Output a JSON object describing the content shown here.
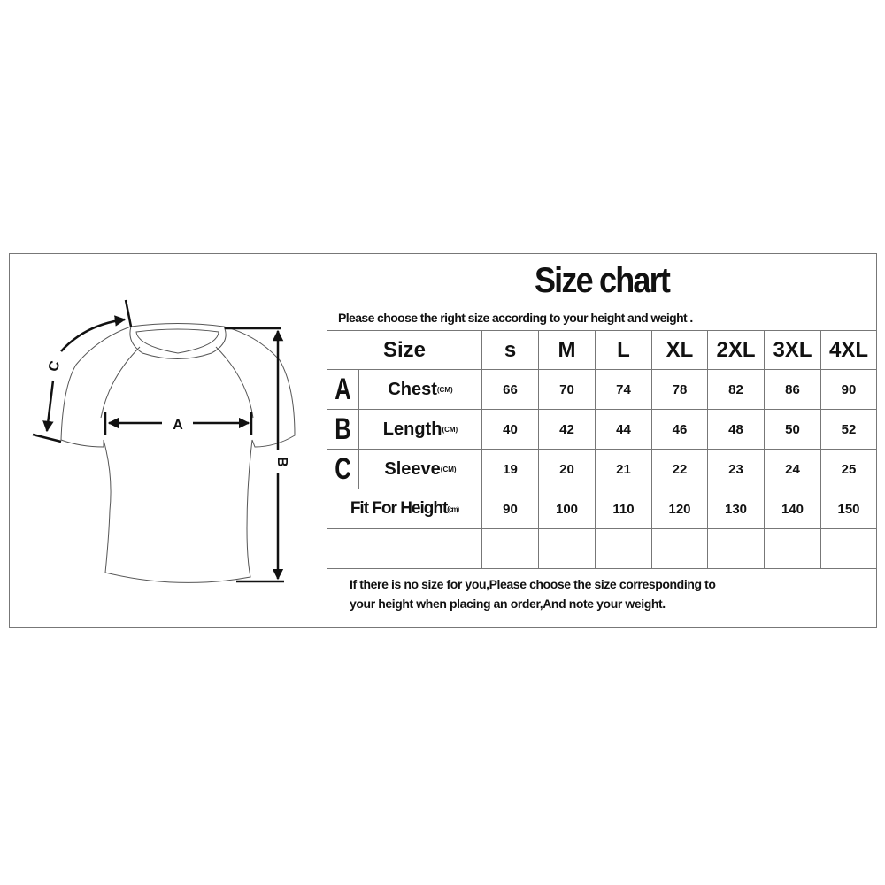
{
  "title": "Size chart",
  "subtitle": "Please choose the right size according to your height and weight .",
  "diagram_labels": {
    "chest": "A",
    "length": "B",
    "sleeve": "C"
  },
  "table": {
    "size_header": "Size",
    "sizes": [
      "s",
      "M",
      "L",
      "XL",
      "2XL",
      "3XL",
      "4XL"
    ],
    "rows": [
      {
        "letter": "A",
        "label": "Chest",
        "unit": "(CM)",
        "values": [
          "66",
          "70",
          "74",
          "78",
          "82",
          "86",
          "90"
        ]
      },
      {
        "letter": "B",
        "label": "Length",
        "unit": "(CM)",
        "values": [
          "40",
          "42",
          "44",
          "46",
          "48",
          "50",
          "52"
        ]
      },
      {
        "letter": "C",
        "label": "Sleeve",
        "unit": "(CM)",
        "values": [
          "19",
          "20",
          "21",
          "22",
          "23",
          "24",
          "25"
        ]
      },
      {
        "letter": "",
        "label": "Fit For Height",
        "unit": "(cm)",
        "values": [
          "90",
          "100",
          "110",
          "120",
          "130",
          "140",
          "150"
        ]
      }
    ]
  },
  "footer": {
    "line1": "If there is no size for you,Please choose the size corresponding to",
    "line2": "your height when placing an order,And note your weight."
  }
}
